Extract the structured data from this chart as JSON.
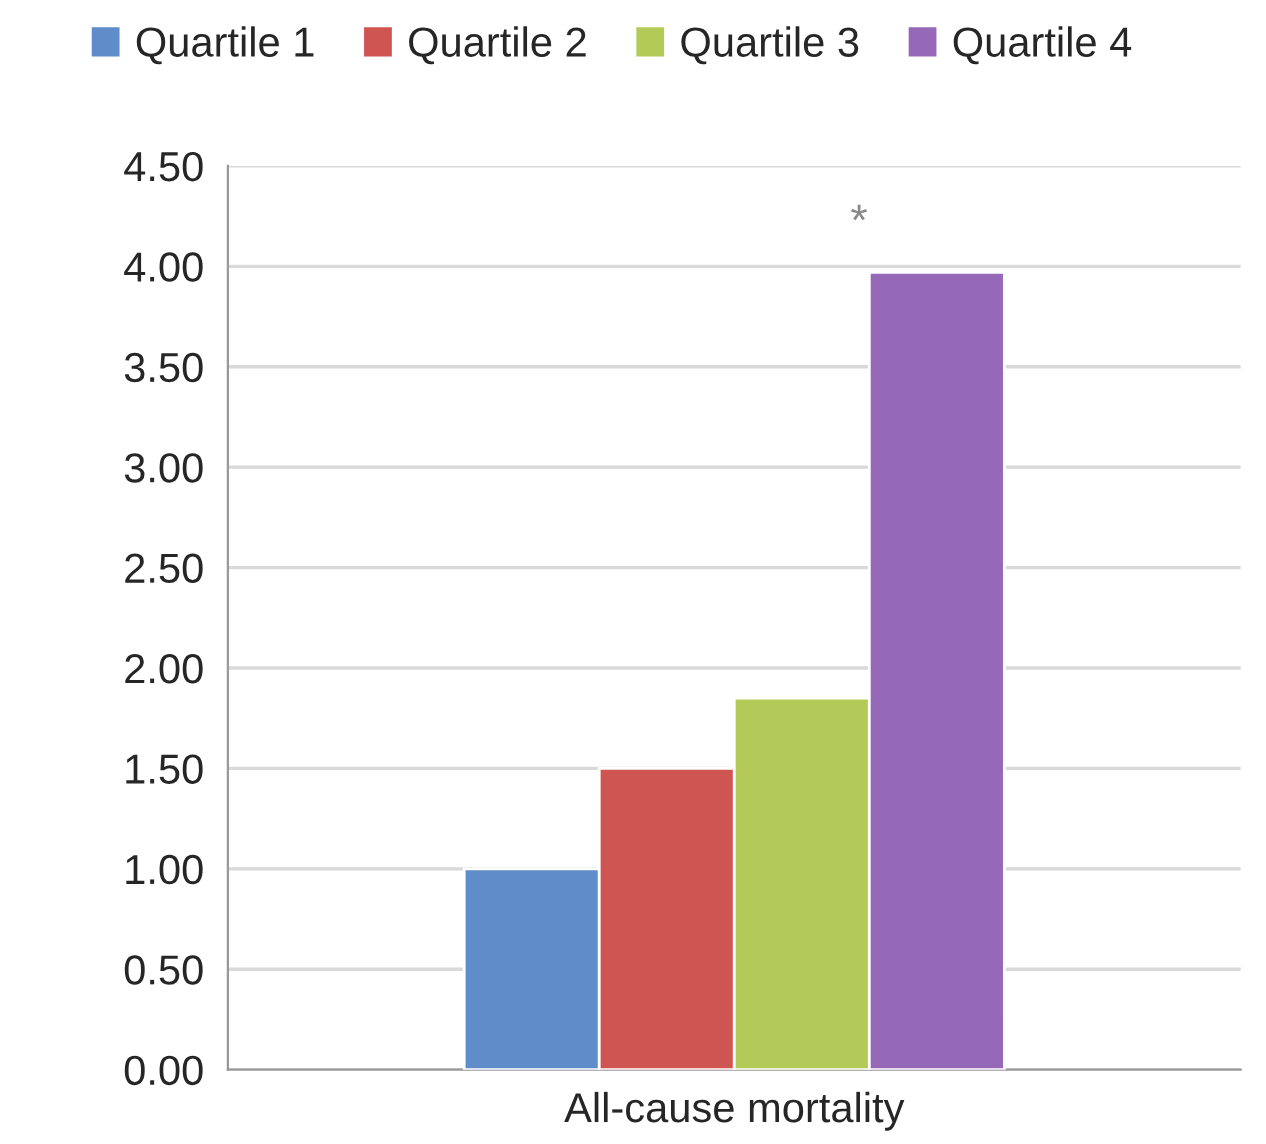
{
  "chart_data": {
    "type": "bar",
    "categories": [
      "All-cause mortality"
    ],
    "series": [
      {
        "name": "Quartile 1",
        "color": "#5f8dc9",
        "values": [
          1.0
        ]
      },
      {
        "name": "Quartile 2",
        "color": "#cf5552",
        "values": [
          1.5
        ]
      },
      {
        "name": "Quartile 3",
        "color": "#b3ca58",
        "values": [
          1.85
        ]
      },
      {
        "name": "Quartile 4",
        "color": "#9569b8",
        "values": [
          3.97
        ]
      }
    ],
    "ylim": [
      0,
      4.5
    ],
    "yticks": [
      {
        "value": 0,
        "label": "0.00"
      },
      {
        "value": 0.5,
        "label": "0.50"
      },
      {
        "value": 1,
        "label": "1.00"
      },
      {
        "value": 1.5,
        "label": "1.50"
      },
      {
        "value": 2,
        "label": "2.00"
      },
      {
        "value": 2.5,
        "label": "2.50"
      },
      {
        "value": 3,
        "label": "3.00"
      },
      {
        "value": 3.5,
        "label": "3.50"
      },
      {
        "value": 4,
        "label": "4.00"
      },
      {
        "value": 4.5,
        "label": "4.50"
      }
    ],
    "annotations": [
      "*"
    ],
    "grid": "y",
    "legend": "top"
  }
}
